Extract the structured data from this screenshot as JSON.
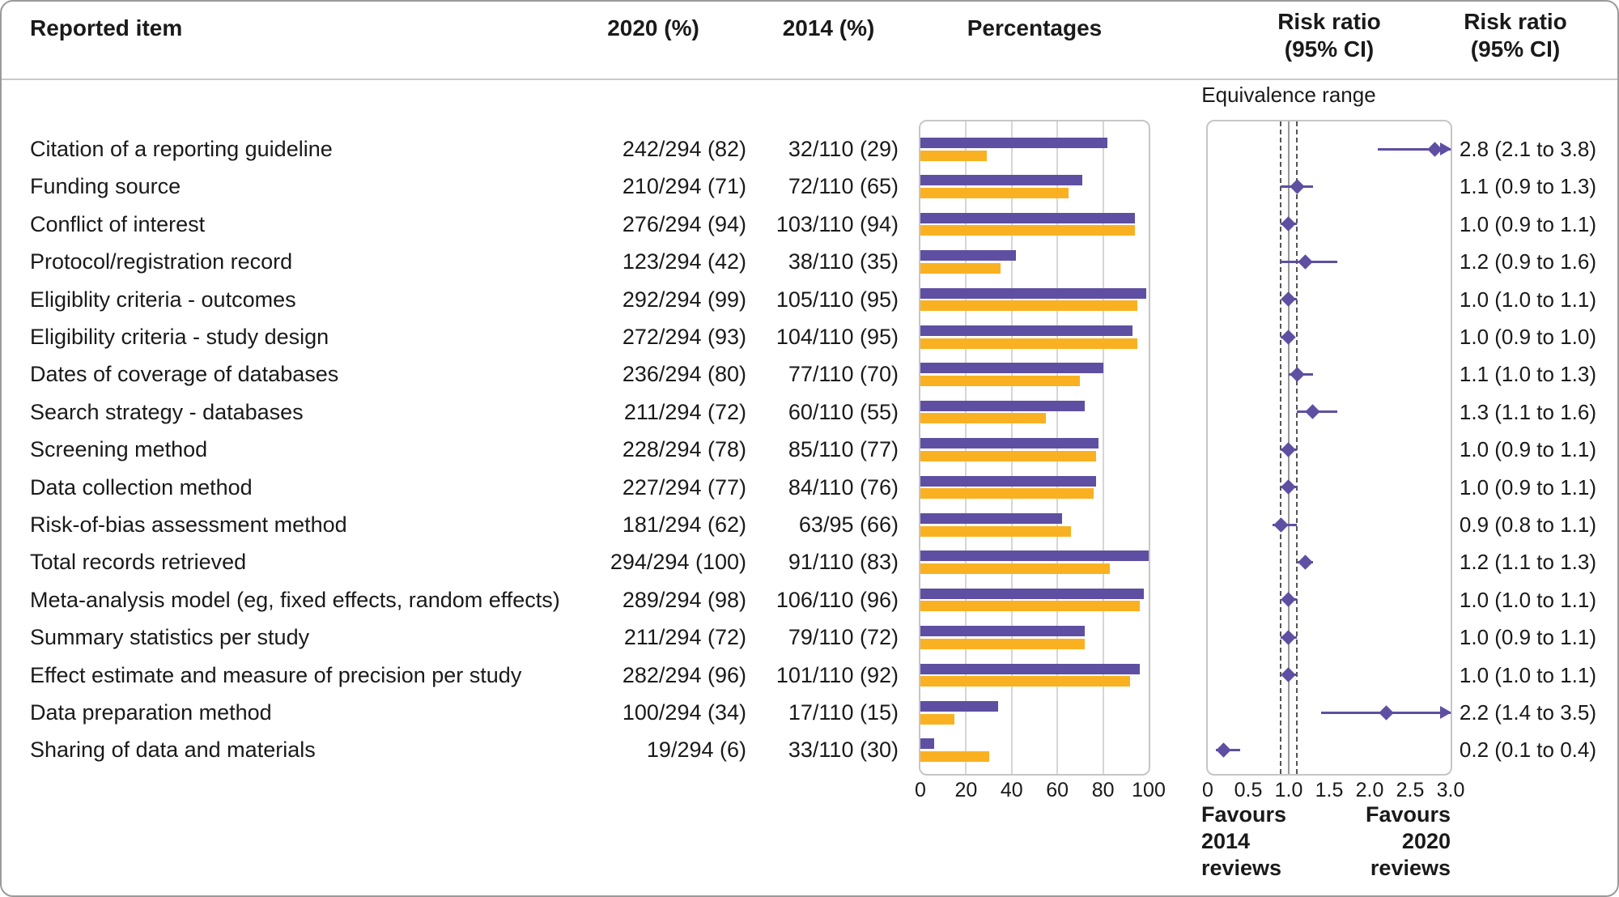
{
  "header": {
    "reported_item": "Reported item",
    "col_2020": "2020 (%)",
    "col_2014": "2014 (%)",
    "percentages": "Percentages",
    "rr_line1": "Risk ratio",
    "rr_line2": "(95% CI)"
  },
  "equivalence_label": "Equivalence range",
  "footer": {
    "favours_left": "Favours\n2014\nreviews",
    "favours_right": "Favours\n2020\nreviews"
  },
  "colors": {
    "purple": "#5e4fa2",
    "orange": "#f9b122",
    "text": "#1a1a1a"
  },
  "chart_data": {
    "type": "bar",
    "subtype": "paired-horizontal-bars-with-forest-plot",
    "pct_axis": {
      "ticks": [
        0,
        20,
        40,
        60,
        80,
        100
      ],
      "range": [
        0,
        100
      ]
    },
    "rr_axis": {
      "ticks": [
        "0",
        "0.5",
        "1.0",
        "1.5",
        "2.0",
        "2.5",
        "3.0"
      ],
      "tick_values": [
        0,
        0.5,
        1.0,
        1.5,
        2.0,
        2.5,
        3.0
      ],
      "range": [
        0,
        3
      ]
    },
    "equivalence_range": [
      0.9,
      1.1
    ],
    "no_effect_line": 1.0,
    "legend": [
      {
        "label": "2020 (%)",
        "color": "#5e4fa2"
      },
      {
        "label": "2014 (%)",
        "color": "#f9b122"
      }
    ],
    "rows": [
      {
        "item": "Citation of a reporting guideline",
        "v2020": "242/294 (82)",
        "v2014": "32/110 (29)",
        "p2020": 82,
        "p2014": 29,
        "rr": 2.8,
        "lo": 2.1,
        "hi": 3.8,
        "rr_text": "2.8 (2.1 to 3.8)"
      },
      {
        "item": "Funding source",
        "v2020": "210/294 (71)",
        "v2014": "72/110 (65)",
        "p2020": 71,
        "p2014": 65,
        "rr": 1.1,
        "lo": 0.9,
        "hi": 1.3,
        "rr_text": "1.1 (0.9 to 1.3)"
      },
      {
        "item": "Conflict of interest",
        "v2020": "276/294 (94)",
        "v2014": "103/110 (94)",
        "p2020": 94,
        "p2014": 94,
        "rr": 1.0,
        "lo": 0.9,
        "hi": 1.1,
        "rr_text": "1.0 (0.9 to 1.1)"
      },
      {
        "item": "Protocol/registration record",
        "v2020": "123/294 (42)",
        "v2014": "38/110 (35)",
        "p2020": 42,
        "p2014": 35,
        "rr": 1.2,
        "lo": 0.9,
        "hi": 1.6,
        "rr_text": "1.2 (0.9 to 1.6)"
      },
      {
        "item": "Eligiblity criteria - outcomes",
        "v2020": "292/294 (99)",
        "v2014": "105/110 (95)",
        "p2020": 99,
        "p2014": 95,
        "rr": 1.0,
        "lo": 1.0,
        "hi": 1.1,
        "rr_text": "1.0 (1.0 to 1.1)"
      },
      {
        "item": "Eligibility criteria - study design",
        "v2020": "272/294 (93)",
        "v2014": "104/110 (95)",
        "p2020": 93,
        "p2014": 95,
        "rr": 1.0,
        "lo": 0.9,
        "hi": 1.0,
        "rr_text": "1.0 (0.9 to 1.0)"
      },
      {
        "item": "Dates of coverage of databases",
        "v2020": "236/294 (80)",
        "v2014": "77/110 (70)",
        "p2020": 80,
        "p2014": 70,
        "rr": 1.1,
        "lo": 1.0,
        "hi": 1.3,
        "rr_text": "1.1 (1.0 to 1.3)"
      },
      {
        "item": "Search strategy - databases",
        "v2020": "211/294 (72)",
        "v2014": "60/110 (55)",
        "p2020": 72,
        "p2014": 55,
        "rr": 1.3,
        "lo": 1.1,
        "hi": 1.6,
        "rr_text": "1.3 (1.1 to 1.6)"
      },
      {
        "item": "Screening method",
        "v2020": "228/294 (78)",
        "v2014": "85/110 (77)",
        "p2020": 78,
        "p2014": 77,
        "rr": 1.0,
        "lo": 0.9,
        "hi": 1.1,
        "rr_text": "1.0 (0.9 to 1.1)"
      },
      {
        "item": "Data collection method",
        "v2020": "227/294 (77)",
        "v2014": "84/110 (76)",
        "p2020": 77,
        "p2014": 76,
        "rr": 1.0,
        "lo": 0.9,
        "hi": 1.1,
        "rr_text": "1.0 (0.9 to 1.1)"
      },
      {
        "item": "Risk-of-bias assessment method",
        "v2020": "181/294 (62)",
        "v2014": "63/95 (66)",
        "p2020": 62,
        "p2014": 66,
        "rr": 0.9,
        "lo": 0.8,
        "hi": 1.1,
        "rr_text": "0.9 (0.8 to 1.1)"
      },
      {
        "item": "Total records retrieved",
        "v2020": "294/294 (100)",
        "v2014": "91/110 (83)",
        "p2020": 100,
        "p2014": 83,
        "rr": 1.2,
        "lo": 1.1,
        "hi": 1.3,
        "rr_text": "1.2 (1.1 to 1.3)"
      },
      {
        "item": "Meta-analysis model (eg, fixed effects, random effects)",
        "v2020": "289/294 (98)",
        "v2014": "106/110 (96)",
        "p2020": 98,
        "p2014": 96,
        "rr": 1.0,
        "lo": 1.0,
        "hi": 1.1,
        "rr_text": "1.0 (1.0 to 1.1)"
      },
      {
        "item": "Summary statistics per study",
        "v2020": "211/294 (72)",
        "v2014": "79/110 (72)",
        "p2020": 72,
        "p2014": 72,
        "rr": 1.0,
        "lo": 0.9,
        "hi": 1.1,
        "rr_text": "1.0 (0.9 to 1.1)"
      },
      {
        "item": "Effect estimate and measure of precision per study",
        "v2020": "282/294 (96)",
        "v2014": "101/110 (92)",
        "p2020": 96,
        "p2014": 92,
        "rr": 1.0,
        "lo": 1.0,
        "hi": 1.1,
        "rr_text": "1.0 (1.0 to 1.1)"
      },
      {
        "item": "Data preparation method",
        "v2020": "100/294 (34)",
        "v2014": "17/110 (15)",
        "p2020": 34,
        "p2014": 15,
        "rr": 2.2,
        "lo": 1.4,
        "hi": 3.5,
        "rr_text": "2.2 (1.4 to 3.5)"
      },
      {
        "item": "Sharing of data and materials",
        "v2020": "19/294 (6)",
        "v2014": "33/110 (30)",
        "p2020": 6,
        "p2014": 30,
        "rr": 0.2,
        "lo": 0.1,
        "hi": 0.4,
        "rr_text": "0.2 (0.1 to 0.4)"
      }
    ]
  }
}
